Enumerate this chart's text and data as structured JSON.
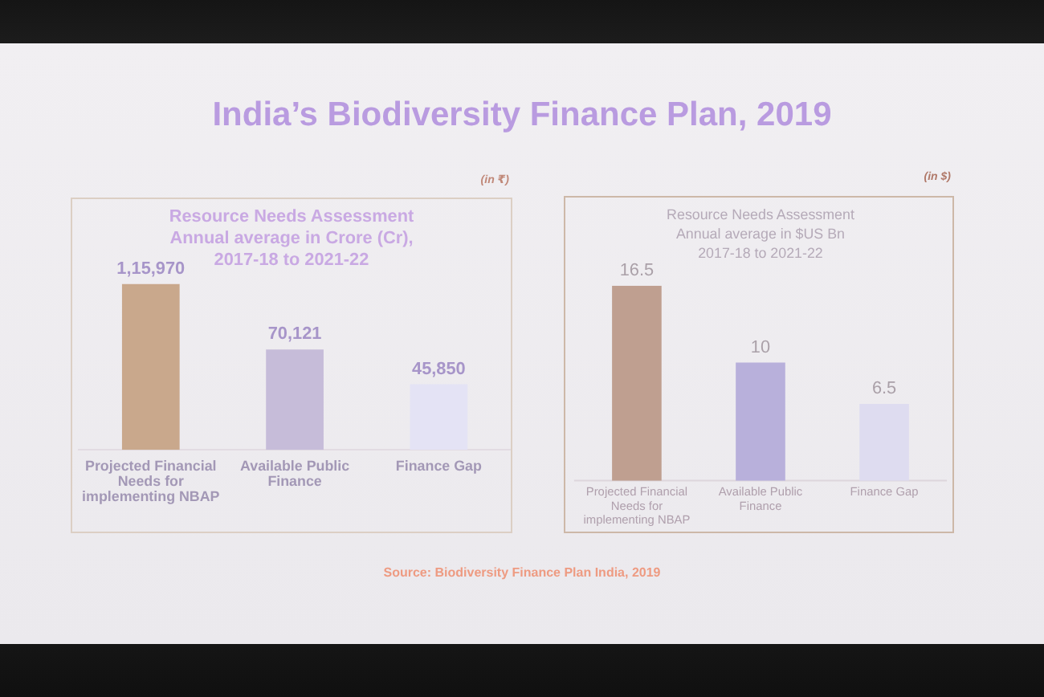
{
  "chart_data": [
    {
      "type": "bar",
      "title": "India’s Biodiversity Finance Plan, 2019",
      "subtitle": "Resource Needs Assessment\nAnnual average in Crore (Cr),\n2017-18 to 2021-22",
      "categories": [
        "Projected Financial Needs for implementing NBAP",
        "Available Public Finance",
        "Finance Gap"
      ],
      "values": [
        115970,
        70121,
        45850
      ],
      "colors": [
        "#c9a88c",
        "#c6bcd9",
        "#e4e3f5"
      ],
      "value_labels": [
        "1,15,970",
        "70,121",
        "45,850"
      ],
      "tick_labels": "x",
      "annotations": [
        "(in ₹)",
        "Source: Biodiversity Finance Plan India, 2019"
      ]
    },
    {
      "type": "bar",
      "subtitle": "Resource Needs Assessment\nAnnual average in $US Bn\n2017-18 to 2021-22",
      "categories": [
        "Projected Financial Needs for implementing NBAP",
        "Available Public Finance",
        "Finance Gap"
      ],
      "values": [
        16.5,
        10,
        6.5
      ],
      "colors": [
        "#bf9f90",
        "#b8b0db",
        "#dedcf0"
      ],
      "data_labels": true,
      "tick_labels": "x",
      "annotations": [
        "(in $)"
      ]
    }
  ]
}
